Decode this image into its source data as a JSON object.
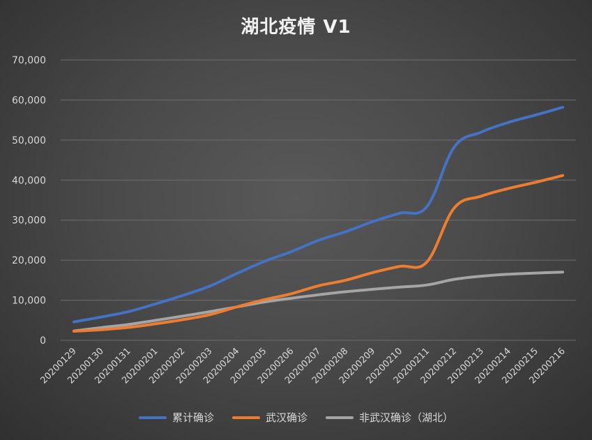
{
  "chart_data": {
    "type": "line",
    "title": "湖北疫情 V1",
    "xlabel": "",
    "ylabel": "",
    "ylim": [
      0,
      70000
    ],
    "yticks": [
      "0",
      "10,000",
      "20,000",
      "30,000",
      "40,000",
      "50,000",
      "60,000",
      "70,000"
    ],
    "ytick_values": [
      0,
      10000,
      20000,
      30000,
      40000,
      50000,
      60000,
      70000
    ],
    "grid": true,
    "legend_position": "bottom",
    "categories": [
      "20200129",
      "20200130",
      "20200131",
      "20200201",
      "20200202",
      "20200203",
      "20200204",
      "20200205",
      "20200206",
      "20200207",
      "20200208",
      "20200209",
      "20200210",
      "20200211",
      "20200212",
      "20200213",
      "20200214",
      "20200215",
      "20200216"
    ],
    "series": [
      {
        "name": "累计确诊",
        "color": "#4472c4",
        "values": [
          4586,
          5806,
          7153,
          9074,
          11177,
          13522,
          16678,
          19665,
          22112,
          24953,
          27100,
          29631,
          31728,
          33366,
          48206,
          51986,
          54406,
          56249,
          58182
        ]
      },
      {
        "name": "武汉确诊",
        "color": "#ed7d31",
        "values": [
          2261,
          2639,
          3215,
          4109,
          5142,
          6384,
          8351,
          10117,
          11618,
          13603,
          14982,
          16902,
          18454,
          19558,
          32994,
          35991,
          37914,
          39462,
          41152
        ]
      },
      {
        "name": "非武汉确诊（湖北）",
        "color": "#a5a5a5",
        "values": [
          2325,
          3167,
          3938,
          4965,
          6035,
          7138,
          8327,
          9548,
          10494,
          11350,
          12118,
          12729,
          13274,
          13808,
          15212,
          15995,
          16492,
          16787,
          17030
        ]
      }
    ]
  }
}
